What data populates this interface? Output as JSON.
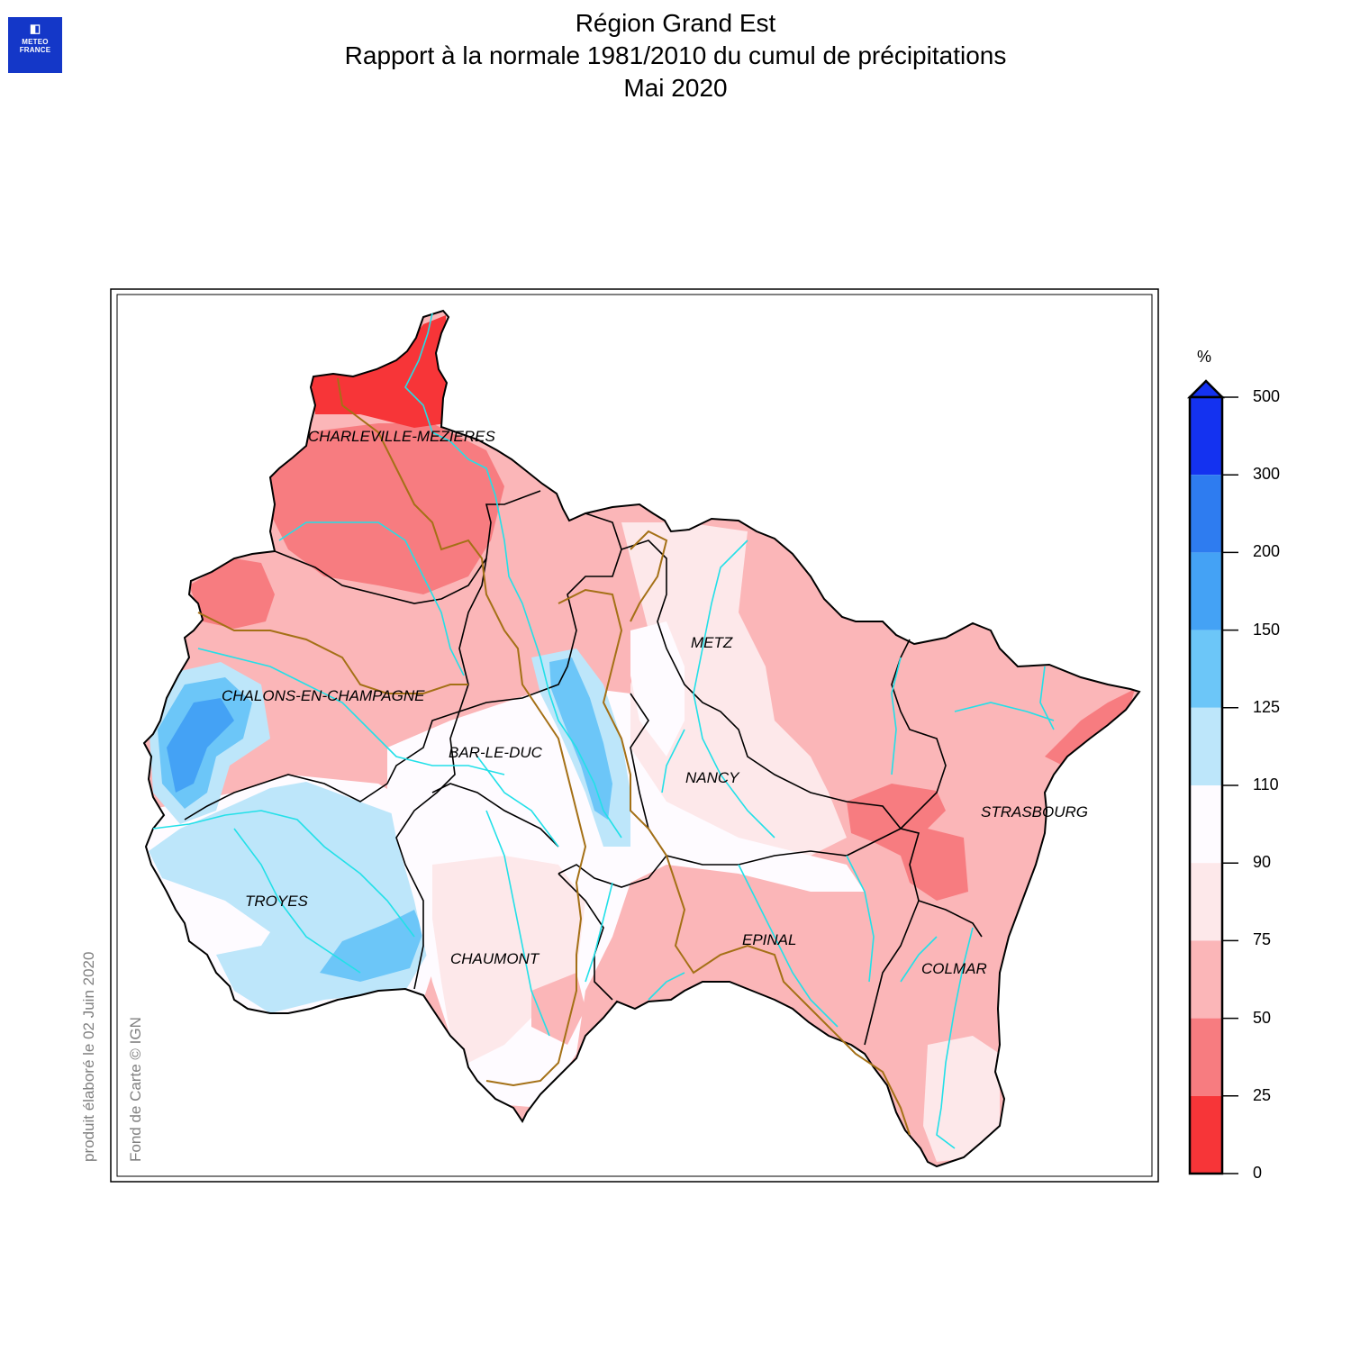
{
  "logo": {
    "glyph": "◧",
    "line1": "METEO",
    "line2": "FRANCE"
  },
  "title": {
    "line1": "Région Grand Est",
    "line2": "Rapport à la normale 1981/2010 du cumul de précipitations",
    "line3": "Mai 2020"
  },
  "side_notes": {
    "produced": "produit élaboré le 02 Juin 2020",
    "credit": "Fond de Carte © IGN"
  },
  "cities": [
    {
      "name": "CHARLEVILLE-MEZIERES"
    },
    {
      "name": "CHALONS-EN-CHAMPAGNE"
    },
    {
      "name": "BAR-LE-DUC"
    },
    {
      "name": "METZ"
    },
    {
      "name": "NANCY"
    },
    {
      "name": "STRASBOURG"
    },
    {
      "name": "TROYES"
    },
    {
      "name": "CHAUMONT"
    },
    {
      "name": "EPINAL"
    },
    {
      "name": "COLMAR"
    }
  ],
  "legend": {
    "unit": "%",
    "ticks": [
      "500",
      "300",
      "200",
      "150",
      "125",
      "110",
      "90",
      "75",
      "50",
      "25",
      "0"
    ],
    "colors": [
      "#1432f0",
      "#2e7cf0",
      "#44a2f5",
      "#6cc6f8",
      "#bde6fa",
      "#fefbff",
      "#fde8ea",
      "#fbb6b8",
      "#f77c80",
      "#f73538"
    ],
    "overflow_color": "#1432f0"
  }
}
